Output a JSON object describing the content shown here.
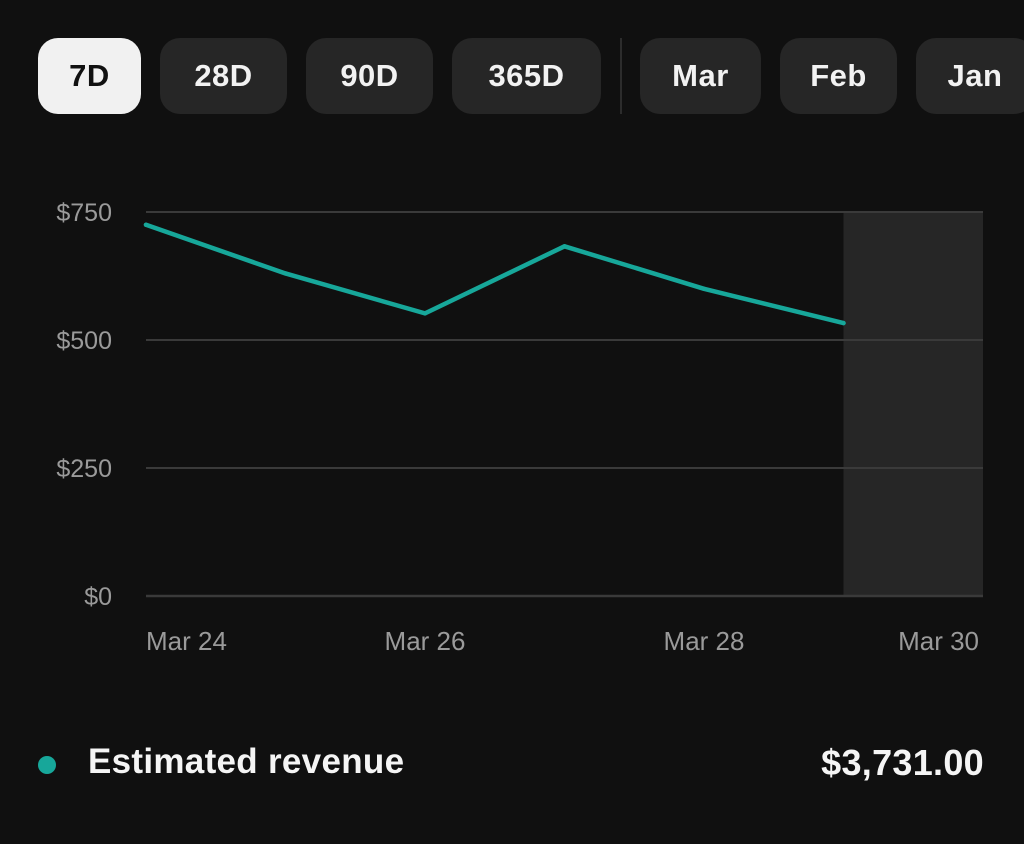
{
  "range_filters": [
    {
      "label": "7D",
      "active": true
    },
    {
      "label": "28D",
      "active": false
    },
    {
      "label": "90D",
      "active": false
    },
    {
      "label": "365D",
      "active": false
    }
  ],
  "month_filters": [
    {
      "label": "Mar",
      "active": false
    },
    {
      "label": "Feb",
      "active": false
    },
    {
      "label": "Jan",
      "active": false
    }
  ],
  "colors": {
    "background": "#101010",
    "series_line": "#17a79a",
    "grid": "#3a3a3a",
    "axis_text": "#9a9a9a",
    "shaded_region": "#262626",
    "chip_active_bg": "#f1f1f1",
    "chip_bg": "#262626"
  },
  "chart_data": {
    "type": "line",
    "title": "",
    "xlabel": "",
    "ylabel": "",
    "x": [
      "Mar 24",
      "Mar 25",
      "Mar 26",
      "Mar 27",
      "Mar 28",
      "Mar 29"
    ],
    "series": [
      {
        "name": "Estimated revenue",
        "values": [
          725,
          630,
          552,
          683,
          600,
          533
        ]
      }
    ],
    "x_domain": [
      "Mar 24",
      "Mar 30"
    ],
    "x_tick_labels": [
      "Mar 24",
      "Mar 26",
      "Mar 28",
      "Mar 30"
    ],
    "ylim": [
      0,
      750
    ],
    "y_tick_values": [
      0,
      250,
      500,
      750
    ],
    "y_tick_labels": [
      "$0",
      "$250",
      "$500",
      "$750"
    ],
    "grid": true,
    "shaded_range": [
      "Mar 29",
      "Mar 30"
    ]
  },
  "summary": {
    "label": "Estimated revenue",
    "value": "$3,731.00"
  }
}
